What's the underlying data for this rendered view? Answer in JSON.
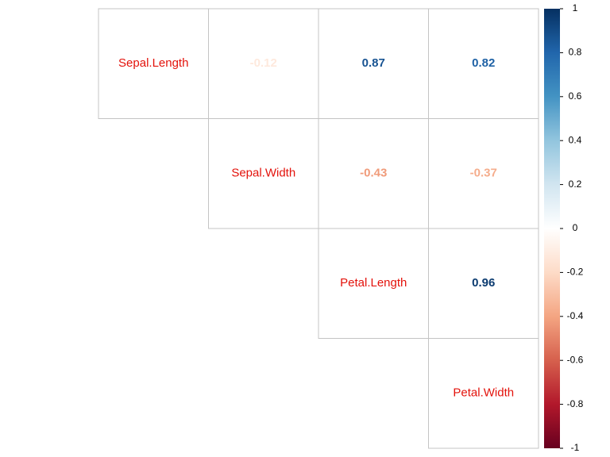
{
  "chart_data": {
    "type": "heatmap",
    "variables": [
      "Sepal.Length",
      "Sepal.Width",
      "Petal.Length",
      "Petal.Width"
    ],
    "matrix_shape": "upper",
    "correlations": [
      {
        "row": "Sepal.Length",
        "col": "Sepal.Width",
        "value": -0.12,
        "label": "-0.12"
      },
      {
        "row": "Sepal.Length",
        "col": "Petal.Length",
        "value": 0.87,
        "label": "0.87"
      },
      {
        "row": "Sepal.Length",
        "col": "Petal.Width",
        "value": 0.82,
        "label": "0.82"
      },
      {
        "row": "Sepal.Width",
        "col": "Petal.Length",
        "value": -0.43,
        "label": "-0.43"
      },
      {
        "row": "Sepal.Width",
        "col": "Petal.Width",
        "value": -0.37,
        "label": "-0.37"
      },
      {
        "row": "Petal.Length",
        "col": "Petal.Width",
        "value": 0.96,
        "label": "0.96"
      }
    ],
    "colorbar": {
      "range": [
        -1,
        1
      ],
      "ticks": [
        "1",
        "0.8",
        "0.6",
        "0.4",
        "0.2",
        "0",
        "-0.2",
        "-0.4",
        "-0.6",
        "-0.8",
        "-1"
      ],
      "palette": [
        "#67001F",
        "#B2182B",
        "#D6604D",
        "#F4A582",
        "#FDDBC7",
        "#FFFFFF",
        "#D1E5F0",
        "#92C5DE",
        "#4393C3",
        "#2166AC",
        "#053061"
      ]
    },
    "diagonal_label_color": "#E3120B",
    "grid": true
  }
}
